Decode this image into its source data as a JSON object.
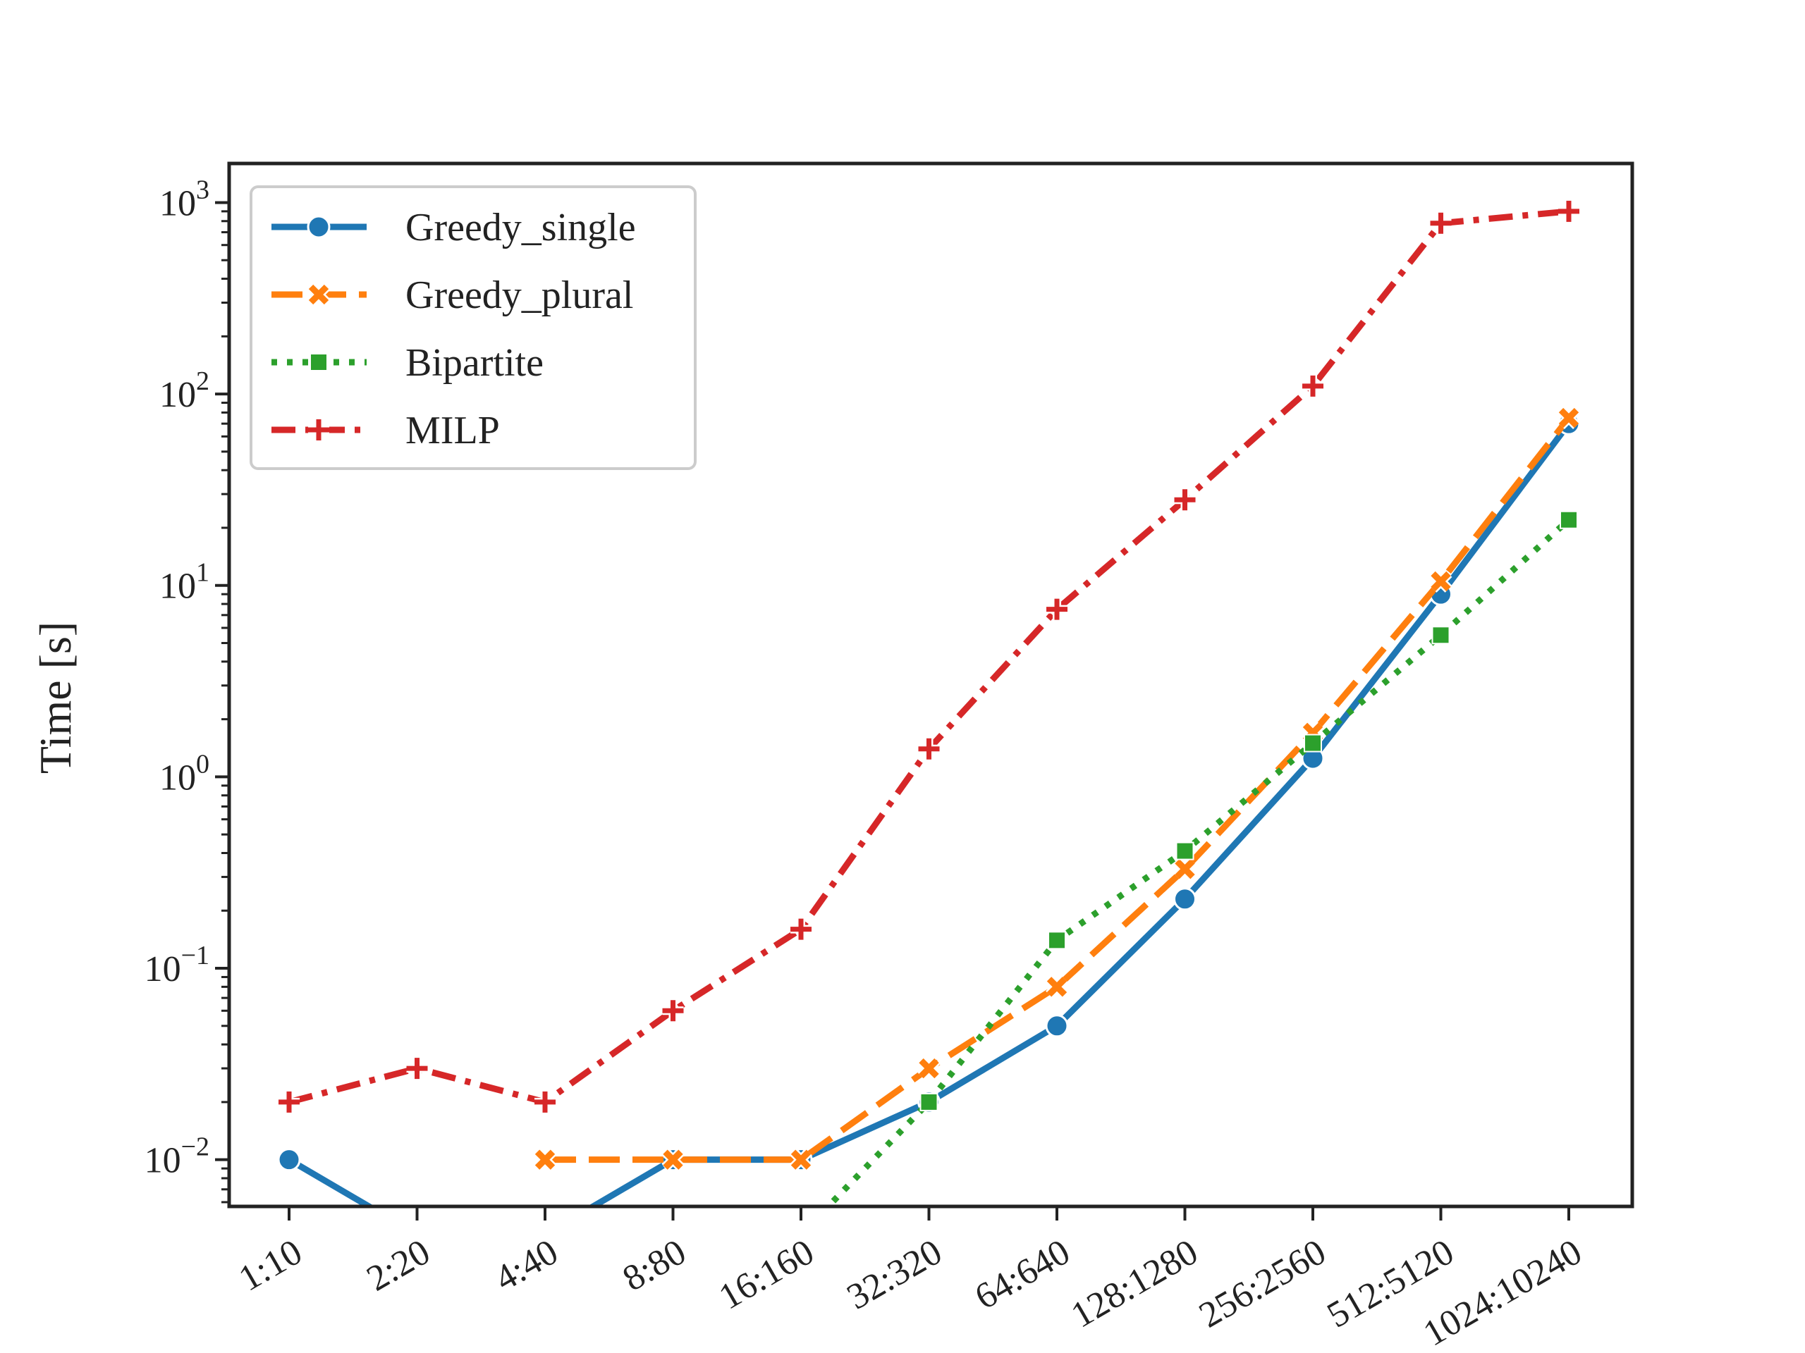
{
  "chart_data": {
    "type": "line",
    "title": "",
    "xlabel": "",
    "ylabel": "Time [s]",
    "yscale": "log",
    "ylim": [
      0.0057,
      1600
    ],
    "yticks": [
      {
        "value": 0.01,
        "base": "10",
        "exp": "−2"
      },
      {
        "value": 0.1,
        "base": "10",
        "exp": "−1"
      },
      {
        "value": 1,
        "base": "10",
        "exp": "0"
      },
      {
        "value": 10,
        "base": "10",
        "exp": "1"
      },
      {
        "value": 100,
        "base": "10",
        "exp": "2"
      },
      {
        "value": 1000,
        "base": "10",
        "exp": "3"
      }
    ],
    "categories": [
      "1:10",
      "2:20",
      "4:40",
      "8:80",
      "16:160",
      "32:320",
      "64:640",
      "128:1280",
      "256:2560",
      "512:5120",
      "1024:10240"
    ],
    "legend_position": "top-left",
    "grid": false,
    "series": [
      {
        "name": "Greedy_single",
        "color": "#1f77b4",
        "marker": "circle",
        "dash": "solid",
        "values": [
          0.01,
          0,
          0,
          0.01,
          0.01,
          0.02,
          0.05,
          0.23,
          1.25,
          9.0,
          70
        ]
      },
      {
        "name": "Greedy_plural",
        "color": "#ff7f0e",
        "marker": "x",
        "dash": "dashed",
        "values": [
          null,
          null,
          0.01,
          0.01,
          0.01,
          0.03,
          0.08,
          0.33,
          1.7,
          10.5,
          75
        ]
      },
      {
        "name": "Bipartite",
        "color": "#2ca02c",
        "marker": "square",
        "dash": "dotted",
        "values": [
          null,
          null,
          null,
          null,
          0,
          0.02,
          0.14,
          0.41,
          1.5,
          5.5,
          22
        ]
      },
      {
        "name": "MILP",
        "color": "#d62728",
        "marker": "plus",
        "dash": "dashdot",
        "values": [
          0.02,
          0.03,
          0.02,
          0.06,
          0.16,
          1.4,
          7.5,
          28,
          110,
          780,
          900
        ]
      }
    ]
  }
}
